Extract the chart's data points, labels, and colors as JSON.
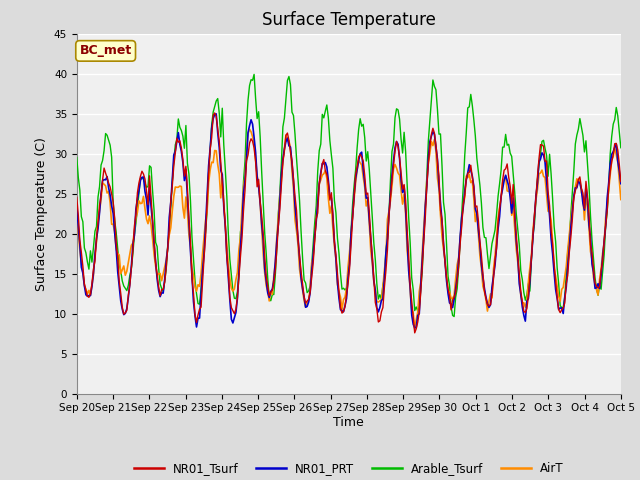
{
  "title": "Surface Temperature",
  "xlabel": "Time",
  "ylabel": "Surface Temperature (C)",
  "ylim": [
    0,
    45
  ],
  "yticks": [
    0,
    5,
    10,
    15,
    20,
    25,
    30,
    35,
    40,
    45
  ],
  "annotation": "BC_met",
  "annotation_color": "#8B0000",
  "annotation_bg": "#FFFFCC",
  "fig_bg_color": "#DCDCDC",
  "plot_bg": "#F0F0F0",
  "grid_color": "white",
  "colors": {
    "NR01_Tsurf": "#CC0000",
    "NR01_PRT": "#0000CC",
    "Arable_Tsurf": "#00BB00",
    "AirT": "#FF8C00"
  },
  "legend_labels": [
    "NR01_Tsurf",
    "NR01_PRT",
    "Arable_Tsurf",
    "AirT"
  ],
  "x_tick_labels": [
    "Sep 20",
    "Sep 21",
    "Sep 22",
    "Sep 23",
    "Sep 24",
    "Sep 25",
    "Sep 26",
    "Sep 27",
    "Sep 28",
    "Sep 29",
    "Sep 30",
    "Oct 1",
    "Oct 2",
    "Oct 3",
    "Oct 4",
    "Oct 5"
  ],
  "title_fontsize": 12,
  "axis_fontsize": 9,
  "tick_fontsize": 7.5,
  "legend_fontsize": 8.5
}
